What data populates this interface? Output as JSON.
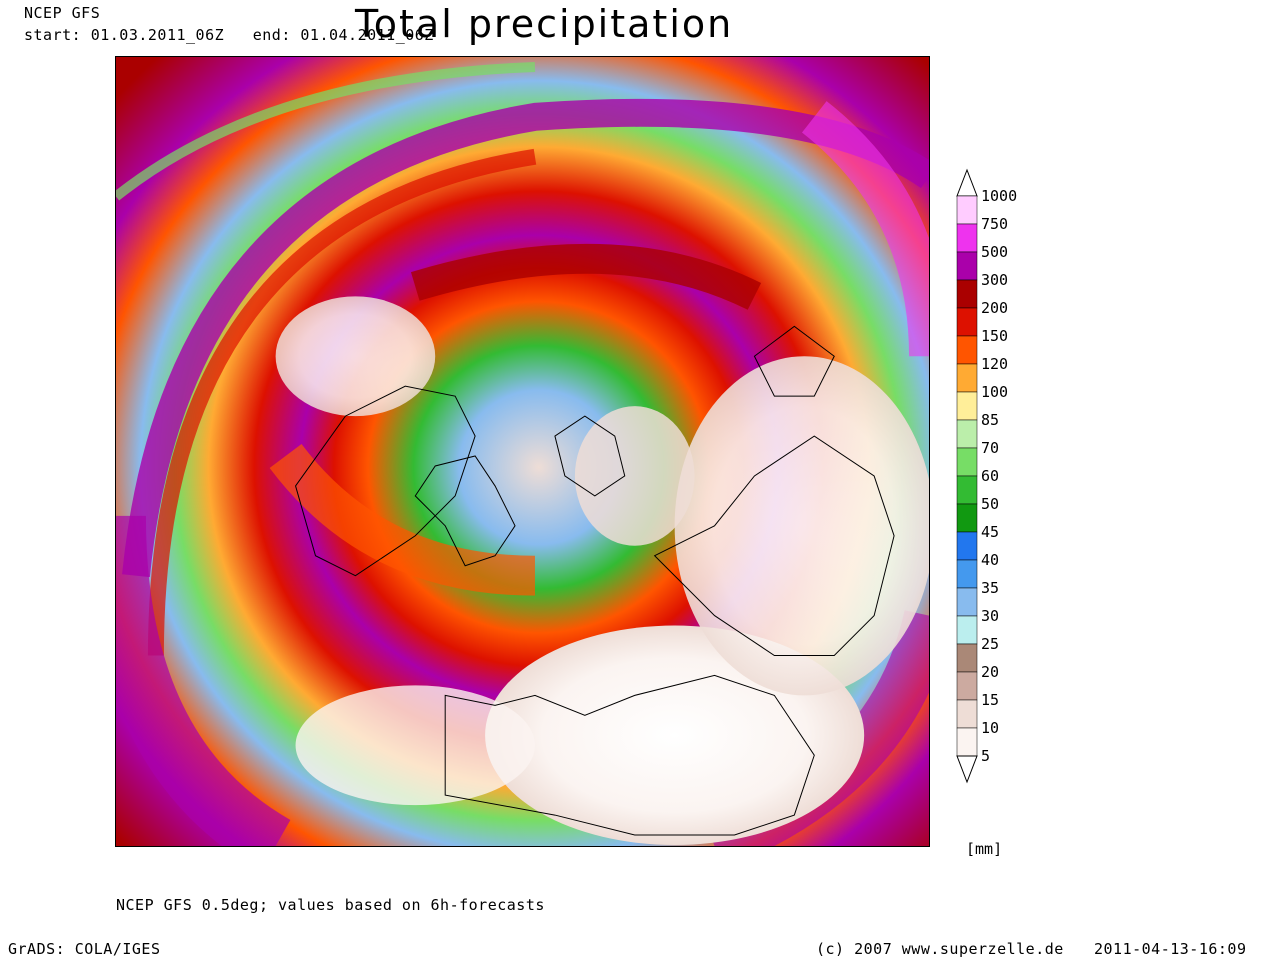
{
  "header": {
    "model": "NCEP GFS",
    "start_label": "start:",
    "start_value": "01.03.2011_06Z",
    "end_label": "end:",
    "end_value": "01.04.2011_06Z",
    "title": "Total precipitation"
  },
  "legend": {
    "units": "[mm]",
    "levels": [
      "1000",
      "750",
      "500",
      "300",
      "200",
      "150",
      "120",
      "100",
      "85",
      "70",
      "60",
      "50",
      "45",
      "40",
      "35",
      "30",
      "25",
      "20",
      "15",
      "10",
      "5"
    ],
    "colors": [
      "#ffccff",
      "#ee33ee",
      "#aa00aa",
      "#aa0000",
      "#dd1100",
      "#ff5500",
      "#ffaa33",
      "#ffee99",
      "#bbeeaa",
      "#77dd66",
      "#33bb33",
      "#119911",
      "#2277ee",
      "#4499ee",
      "#88bbee",
      "#bbeeee",
      "#aa8877",
      "#ccaaa0",
      "#eeddd6",
      "#fbf4f1"
    ]
  },
  "footer": {
    "source_note": "NCEP GFS 0.5deg; values based on 6h-forecasts",
    "grads": "GrADS: COLA/IGES",
    "copyright": "(c) 2007 www.superzelle.de",
    "timestamp": "2011-04-13-16:09"
  }
}
